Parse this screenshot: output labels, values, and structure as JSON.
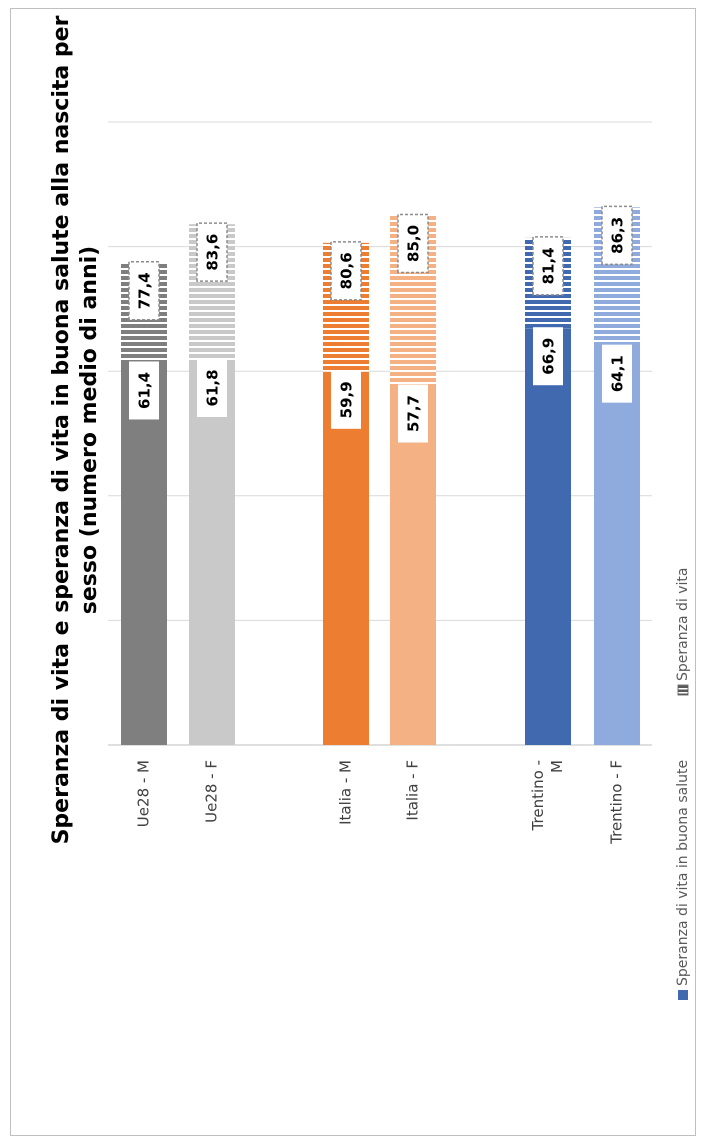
{
  "chart_data": {
    "type": "bar",
    "orientation": "vertical-rotated",
    "title": "Speranza di vita  e speranza di vita in buona salute alla nascita  per sesso (numero medio di anni)",
    "title_lines": [
      "Speranza di vita  e speranza di vita in buona salute alla nascita  per",
      "sesso (numero medio di anni)"
    ],
    "categories": [
      "Ue28 - M",
      "Ue28 - F",
      "Italia - M",
      "Italia - F",
      "Trentino - M",
      "Trentino - F"
    ],
    "category_lines": [
      [
        "Ue28 - M"
      ],
      [
        "Ue28 - F"
      ],
      [
        "Italia - M"
      ],
      [
        "Italia - F"
      ],
      [
        "Trentino -",
        "M"
      ],
      [
        "Trentino - F"
      ]
    ],
    "groups": [
      [
        0,
        1
      ],
      [
        2,
        3
      ],
      [
        4,
        5
      ]
    ],
    "series": [
      {
        "name": "Speranza di vita in buona salute",
        "values": [
          61.4,
          61.8,
          59.9,
          57.7,
          66.9,
          64.1
        ],
        "labels": [
          "61,4",
          "61,8",
          "59,9",
          "57,7",
          "66,9",
          "64,1"
        ]
      },
      {
        "name": "Speranza di vita",
        "values": [
          77.4,
          83.6,
          80.6,
          85.0,
          81.4,
          86.3
        ],
        "labels": [
          "77,4",
          "83,6",
          "80,6",
          "85,0",
          "81,4",
          "86,3"
        ]
      }
    ],
    "colors": [
      "#7f7f7f",
      "#c9c9c9",
      "#ed7d31",
      "#f4b183",
      "#4169b0",
      "#8faadc"
    ],
    "axis_range": [
      0,
      100
    ],
    "gridline_step": 20,
    "grid": true,
    "legend_position": "bottom"
  }
}
